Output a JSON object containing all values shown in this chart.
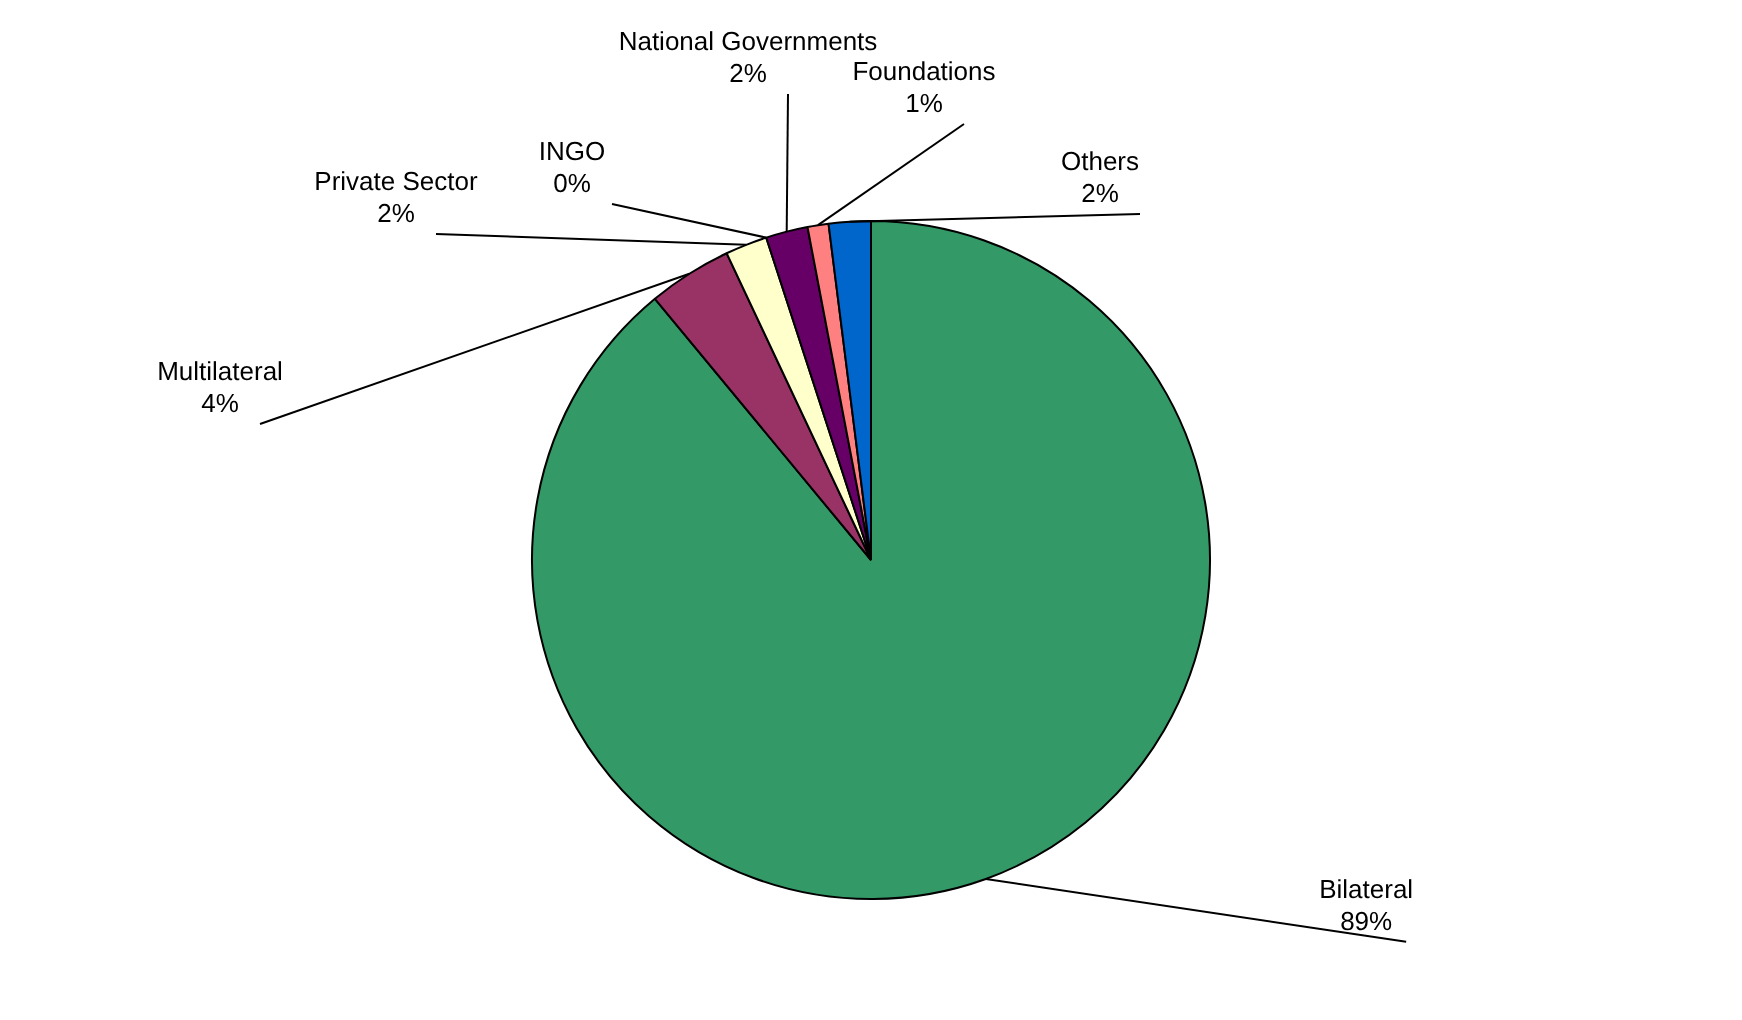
{
  "chart_data": {
    "type": "pie",
    "categories": [
      "Bilateral",
      "Multilateral",
      "Private Sector",
      "INGO",
      "National Governments",
      "Foundations",
      "Others"
    ],
    "values": [
      89,
      4,
      2,
      0,
      2,
      1,
      2
    ],
    "value_labels": [
      "89%",
      "4%",
      "2%",
      "0%",
      "2%",
      "1%",
      "2%"
    ],
    "colors": [
      "#339966",
      "#993366",
      "#ffffcc",
      "#ccffff",
      "#660066",
      "#ff8080",
      "#0066cc"
    ]
  }
}
